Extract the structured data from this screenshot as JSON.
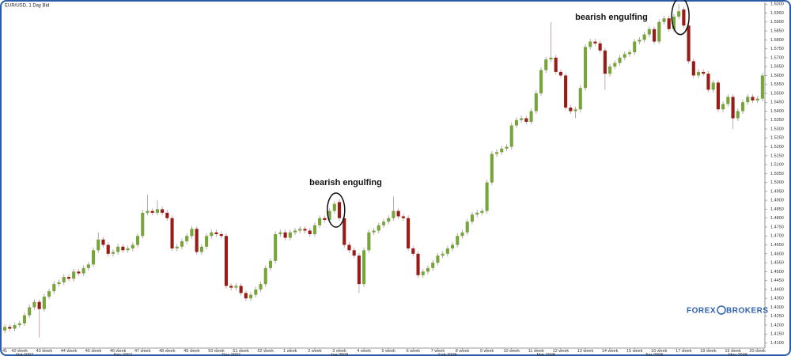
{
  "chart_data": {
    "type": "candlestick",
    "title": "EUR/USD, 1 Day Bid",
    "up_color": "#77a53c",
    "down_color": "#9a1a17",
    "annotations": [
      "bearish engulfing",
      "bearish engulfing"
    ],
    "watermark": [
      "FOREX",
      "BROKERS"
    ],
    "open": [
      1.417,
      1.419,
      1.418,
      1.42,
      1.421,
      1.4255,
      1.43,
      1.433,
      1.429,
      1.436,
      1.439,
      1.443,
      1.444,
      1.447,
      1.446,
      1.45,
      1.449,
      1.452,
      1.454,
      1.462,
      1.468,
      1.465,
      1.46,
      1.461,
      1.464,
      1.462,
      1.463,
      1.465,
      1.47,
      1.483,
      1.484,
      1.483,
      1.485,
      1.483,
      1.48,
      1.463,
      1.464,
      1.467,
      1.47,
      1.474,
      1.461,
      1.464,
      1.47,
      1.472,
      1.471,
      1.47,
      1.442,
      1.441,
      1.442,
      1.438,
      1.435,
      1.437,
      1.44,
      1.443,
      1.452,
      1.456,
      1.471,
      1.472,
      1.469,
      1.472,
      1.473,
      1.474,
      1.473,
      1.471,
      1.476,
      1.48,
      1.479,
      1.484,
      1.489,
      1.48,
      1.465,
      1.462,
      1.459,
      1.443,
      1.462,
      1.472,
      1.473,
      1.476,
      1.478,
      1.48,
      1.484,
      1.481,
      1.48,
      1.463,
      1.46,
      1.448,
      1.45,
      1.452,
      1.455,
      1.459,
      1.46,
      1.463,
      1.465,
      1.47,
      1.472,
      1.478,
      1.482,
      1.483,
      1.484,
      1.5,
      1.516,
      1.517,
      1.519,
      1.52,
      1.532,
      1.535,
      1.536,
      1.534,
      1.54,
      1.55,
      1.563,
      1.569,
      1.57,
      1.562,
      1.56,
      1.542,
      1.54,
      1.541,
      1.553,
      1.576,
      1.579,
      1.578,
      1.574,
      1.561,
      1.565,
      1.567,
      1.57,
      1.572,
      1.573,
      1.579,
      1.58,
      1.583,
      1.586,
      1.579,
      1.59,
      1.592,
      1.586,
      1.593,
      1.597,
      1.588,
      1.568,
      1.56,
      1.562,
      1.561,
      1.552,
      1.556,
      1.541,
      1.544,
      1.548,
      1.536,
      1.54,
      1.545,
      1.548,
      1.546,
      1.547
    ],
    "high": [
      1.4205,
      1.4205,
      1.4215,
      1.4225,
      1.427,
      1.4315,
      1.4345,
      1.4345,
      1.4375,
      1.4405,
      1.4445,
      1.4455,
      1.4485,
      1.4485,
      1.4515,
      1.4515,
      1.4535,
      1.4555,
      1.4635,
      1.472,
      1.4695,
      1.4665,
      1.4625,
      1.4655,
      1.4655,
      1.4645,
      1.4665,
      1.4715,
      1.4845,
      1.493,
      1.4855,
      1.49,
      1.4865,
      1.4845,
      1.4815,
      1.4655,
      1.4685,
      1.4715,
      1.4755,
      1.4755,
      1.4655,
      1.4715,
      1.4735,
      1.4735,
      1.4725,
      1.4715,
      1.4435,
      1.4435,
      1.4435,
      1.4395,
      1.4385,
      1.4415,
      1.4445,
      1.4535,
      1.4575,
      1.4725,
      1.4735,
      1.4735,
      1.4735,
      1.4745,
      1.4755,
      1.4755,
      1.4745,
      1.4775,
      1.4815,
      1.4815,
      1.4855,
      1.4895,
      1.4905,
      1.4815,
      1.4665,
      1.4635,
      1.4605,
      1.4635,
      1.4735,
      1.4745,
      1.4775,
      1.4795,
      1.4815,
      1.492,
      1.4855,
      1.4825,
      1.4815,
      1.4645,
      1.4615,
      1.4515,
      1.4535,
      1.4565,
      1.4605,
      1.4615,
      1.4645,
      1.4665,
      1.4715,
      1.4735,
      1.4795,
      1.4835,
      1.4845,
      1.4855,
      1.5015,
      1.5175,
      1.5185,
      1.5205,
      1.5215,
      1.5335,
      1.5365,
      1.5375,
      1.5375,
      1.5415,
      1.5515,
      1.5645,
      1.5705,
      1.59,
      1.5715,
      1.5635,
      1.5615,
      1.5435,
      1.5425,
      1.5545,
      1.5775,
      1.5805,
      1.5805,
      1.5795,
      1.5755,
      1.5665,
      1.5685,
      1.5715,
      1.5735,
      1.5745,
      1.5805,
      1.5815,
      1.5845,
      1.5875,
      1.5875,
      1.5915,
      1.5935,
      1.5935,
      1.5945,
      1.6,
      1.5985,
      1.5895,
      1.5695,
      1.5635,
      1.5635,
      1.5625,
      1.5575,
      1.5575,
      1.5455,
      1.5495,
      1.5495,
      1.5415,
      1.5465,
      1.5495,
      1.5495,
      1.5485,
      1.5615
    ],
    "low": [
      1.4155,
      1.4165,
      1.4165,
      1.4185,
      1.4195,
      1.424,
      1.4285,
      1.413,
      1.4275,
      1.4345,
      1.4375,
      1.4415,
      1.4425,
      1.4445,
      1.4445,
      1.4475,
      1.4475,
      1.4505,
      1.4525,
      1.4605,
      1.4635,
      1.4585,
      1.4585,
      1.4595,
      1.4605,
      1.4605,
      1.4615,
      1.4635,
      1.4685,
      1.4815,
      1.4815,
      1.4815,
      1.4815,
      1.4785,
      1.4615,
      1.4615,
      1.4625,
      1.4655,
      1.4685,
      1.4595,
      1.4595,
      1.4625,
      1.4685,
      1.4695,
      1.4685,
      1.4405,
      1.4395,
      1.4395,
      1.4365,
      1.4335,
      1.4335,
      1.4355,
      1.4385,
      1.4415,
      1.4505,
      1.4545,
      1.4695,
      1.4675,
      1.4675,
      1.4705,
      1.4715,
      1.4715,
      1.4695,
      1.4695,
      1.4745,
      1.4775,
      1.4775,
      1.4825,
      1.4785,
      1.4635,
      1.4605,
      1.4575,
      1.438,
      1.4415,
      1.4605,
      1.4705,
      1.4715,
      1.4745,
      1.4765,
      1.4785,
      1.4795,
      1.4785,
      1.4615,
      1.4585,
      1.4465,
      1.4465,
      1.4485,
      1.4505,
      1.4535,
      1.4575,
      1.4585,
      1.4615,
      1.4635,
      1.4685,
      1.4705,
      1.4765,
      1.4805,
      1.4815,
      1.4825,
      1.4985,
      1.5145,
      1.5155,
      1.5175,
      1.5185,
      1.5305,
      1.5335,
      1.5325,
      1.5325,
      1.5385,
      1.5485,
      1.5615,
      1.5675,
      1.5605,
      1.5585,
      1.5405,
      1.5385,
      1.536,
      1.5395,
      1.5515,
      1.5745,
      1.5765,
      1.5725,
      1.552,
      1.5595,
      1.5635,
      1.5655,
      1.5685,
      1.5705,
      1.5715,
      1.5775,
      1.5785,
      1.5815,
      1.5775,
      1.5775,
      1.5885,
      1.5845,
      1.5845,
      1.5915,
      1.5865,
      1.5665,
      1.5585,
      1.5585,
      1.5595,
      1.5505,
      1.5505,
      1.5395,
      1.5395,
      1.5425,
      1.53,
      1.5345,
      1.5385,
      1.5435,
      1.5445,
      1.5445,
      1.5455
    ],
    "close": [
      1.419,
      1.418,
      1.42,
      1.421,
      1.4255,
      1.43,
      1.433,
      1.429,
      1.436,
      1.439,
      1.443,
      1.444,
      1.447,
      1.446,
      1.45,
      1.449,
      1.452,
      1.454,
      1.462,
      1.468,
      1.465,
      1.46,
      1.461,
      1.464,
      1.462,
      1.463,
      1.465,
      1.47,
      1.483,
      1.484,
      1.483,
      1.485,
      1.483,
      1.48,
      1.463,
      1.464,
      1.467,
      1.47,
      1.474,
      1.461,
      1.464,
      1.47,
      1.472,
      1.471,
      1.47,
      1.442,
      1.441,
      1.442,
      1.438,
      1.435,
      1.437,
      1.44,
      1.443,
      1.452,
      1.456,
      1.471,
      1.472,
      1.469,
      1.472,
      1.473,
      1.474,
      1.473,
      1.471,
      1.476,
      1.48,
      1.479,
      1.484,
      1.488,
      1.48,
      1.465,
      1.462,
      1.459,
      1.443,
      1.462,
      1.472,
      1.473,
      1.476,
      1.478,
      1.48,
      1.484,
      1.481,
      1.48,
      1.463,
      1.46,
      1.448,
      1.45,
      1.452,
      1.455,
      1.459,
      1.46,
      1.463,
      1.465,
      1.47,
      1.472,
      1.478,
      1.482,
      1.483,
      1.484,
      1.5,
      1.516,
      1.517,
      1.519,
      1.52,
      1.532,
      1.535,
      1.536,
      1.534,
      1.54,
      1.55,
      1.563,
      1.569,
      1.57,
      1.562,
      1.56,
      1.542,
      1.54,
      1.541,
      1.553,
      1.576,
      1.579,
      1.578,
      1.574,
      1.561,
      1.565,
      1.567,
      1.57,
      1.572,
      1.573,
      1.579,
      1.58,
      1.583,
      1.586,
      1.579,
      1.59,
      1.592,
      1.586,
      1.593,
      1.596,
      1.588,
      1.568,
      1.56,
      1.562,
      1.561,
      1.552,
      1.556,
      1.541,
      1.544,
      1.548,
      1.536,
      1.54,
      1.545,
      1.548,
      1.546,
      1.547,
      1.56
    ],
    "ylim": [
      1.408,
      1.601
    ],
    "yticks": [
      {
        "value": 1.6,
        "label": "1.6000"
      },
      {
        "value": 1.595,
        "label": "1.5950"
      },
      {
        "value": 1.59,
        "label": "1.5900"
      },
      {
        "value": 1.585,
        "label": "1.5850"
      },
      {
        "value": 1.58,
        "label": "1.5800"
      },
      {
        "value": 1.575,
        "label": "1.5750"
      },
      {
        "value": 1.57,
        "label": "1.5700"
      },
      {
        "value": 1.565,
        "label": "1.5650"
      },
      {
        "value": 1.56,
        "label": "1.5600"
      },
      {
        "value": 1.555,
        "label": "1.5550"
      },
      {
        "value": 1.55,
        "label": "1.5500"
      },
      {
        "value": 1.545,
        "label": "1.5450"
      },
      {
        "value": 1.54,
        "label": "1.5400"
      },
      {
        "value": 1.535,
        "label": "1.5350"
      },
      {
        "value": 1.53,
        "label": "1.5300"
      },
      {
        "value": 1.525,
        "label": "1.5250"
      },
      {
        "value": 1.52,
        "label": "1.5200"
      },
      {
        "value": 1.515,
        "label": "1.5150"
      },
      {
        "value": 1.51,
        "label": "1.5100"
      },
      {
        "value": 1.505,
        "label": "1.5050"
      },
      {
        "value": 1.5,
        "label": "1.5000"
      },
      {
        "value": 1.495,
        "label": "1.4950"
      },
      {
        "value": 1.49,
        "label": "1.4900"
      },
      {
        "value": 1.485,
        "label": "1.4850"
      },
      {
        "value": 1.48,
        "label": "1.4800"
      },
      {
        "value": 1.475,
        "label": "1.4750"
      },
      {
        "value": 1.47,
        "label": "1.4700"
      },
      {
        "value": 1.465,
        "label": "1.4650"
      },
      {
        "value": 1.46,
        "label": "1.4600"
      },
      {
        "value": 1.455,
        "label": "1.4550"
      },
      {
        "value": 1.45,
        "label": "1.4500"
      },
      {
        "value": 1.445,
        "label": "1.4450"
      },
      {
        "value": 1.44,
        "label": "1.4400"
      },
      {
        "value": 1.435,
        "label": "1.4350"
      },
      {
        "value": 1.43,
        "label": "1.4300"
      },
      {
        "value": 1.425,
        "label": "1.4250"
      },
      {
        "value": 1.42,
        "label": "1.4200"
      },
      {
        "value": 1.415,
        "label": "1.4150"
      },
      {
        "value": 1.41,
        "label": "1.4100"
      }
    ],
    "xlim": [
      -0.5,
      154.5
    ],
    "xticks": [
      {
        "value": 0,
        "label": "41"
      },
      {
        "value": 3,
        "label": "42 week"
      },
      {
        "value": 8,
        "label": "43 week"
      },
      {
        "value": 13,
        "label": "44 week"
      },
      {
        "value": 18,
        "label": "45 week"
      },
      {
        "value": 23,
        "label": "46 week"
      },
      {
        "value": 28,
        "label": "47 week"
      },
      {
        "value": 33,
        "label": "48 week"
      },
      {
        "value": 38,
        "label": "49 week"
      },
      {
        "value": 43,
        "label": "50 week"
      },
      {
        "value": 48,
        "label": "51 week"
      },
      {
        "value": 53,
        "label": "52 week"
      },
      {
        "value": 58,
        "label": "1 week"
      },
      {
        "value": 63,
        "label": "2 week"
      },
      {
        "value": 68,
        "label": "3 week"
      },
      {
        "value": 73,
        "label": "4 week"
      },
      {
        "value": 78,
        "label": "5 week"
      },
      {
        "value": 83,
        "label": "6 week"
      },
      {
        "value": 88,
        "label": "7 week"
      },
      {
        "value": 93,
        "label": "8 week"
      },
      {
        "value": 98,
        "label": "9 week"
      },
      {
        "value": 103,
        "label": "10 week"
      },
      {
        "value": 108,
        "label": "11 week"
      },
      {
        "value": 113,
        "label": "12 week"
      },
      {
        "value": 118,
        "label": "13 week"
      },
      {
        "value": 123,
        "label": "14 week"
      },
      {
        "value": 128,
        "label": "15 week"
      },
      {
        "value": 133,
        "label": "16 week"
      },
      {
        "value": 138,
        "label": "17 week"
      },
      {
        "value": 143,
        "label": "18 week"
      },
      {
        "value": 148,
        "label": "19 week"
      },
      {
        "value": 153,
        "label": "20 week"
      }
    ],
    "x_group_ticks": [
      {
        "value": 4,
        "label": "Oct 2007"
      },
      {
        "value": 24,
        "label": "Nov 2007"
      },
      {
        "value": 46,
        "label": "Dec 2007"
      },
      {
        "value": 68,
        "label": "Jan 2008"
      },
      {
        "value": 90,
        "label": "Feb 2008"
      },
      {
        "value": 110,
        "label": "Mar 2008"
      },
      {
        "value": 132,
        "label": "Apr 2008"
      },
      {
        "value": 149,
        "label": "May 2008"
      }
    ]
  }
}
